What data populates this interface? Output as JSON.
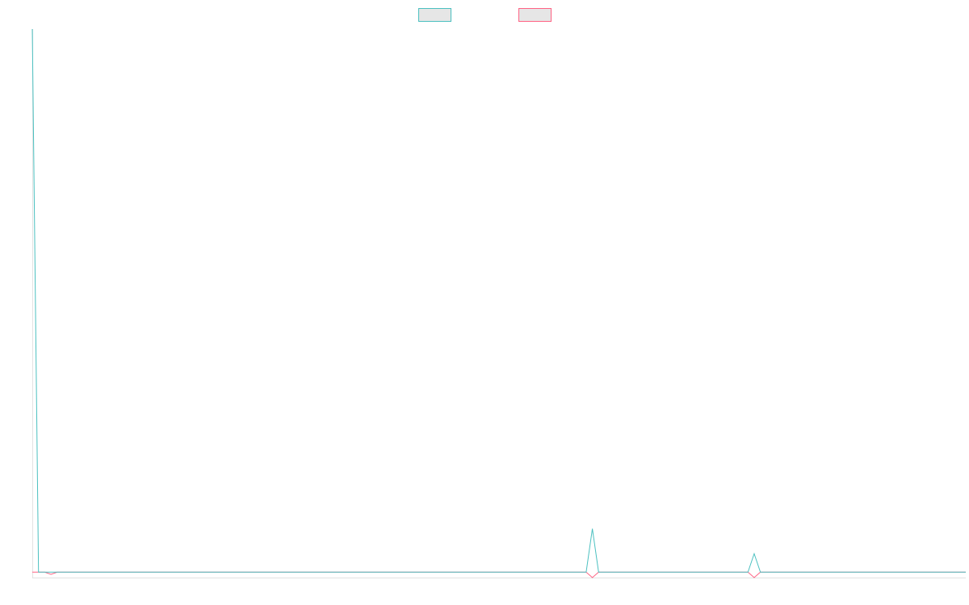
{
  "chart_data": {
    "type": "line",
    "title": "",
    "xlabel": "",
    "ylabel": "",
    "grid": false,
    "legend_position": "top-center",
    "x": [
      0,
      1,
      2,
      3,
      4,
      5,
      6,
      7,
      8,
      9,
      10,
      11,
      12,
      13,
      14,
      15,
      16,
      17,
      18,
      19,
      20,
      21,
      22,
      23,
      24,
      25,
      26,
      27,
      28,
      29,
      30,
      31,
      32,
      33,
      34,
      35,
      36,
      37,
      38,
      39,
      40,
      41,
      42,
      43,
      44,
      45,
      46,
      47,
      48,
      49,
      50,
      51,
      52,
      53,
      54,
      55,
      56,
      57,
      58,
      59,
      60,
      61,
      62,
      63,
      64,
      65,
      66,
      67,
      68,
      69,
      70,
      71,
      72,
      73,
      74,
      75,
      76,
      77,
      78,
      79,
      80,
      81,
      82,
      83,
      84,
      85,
      86,
      87,
      88,
      89,
      90,
      91,
      92,
      93,
      94,
      95,
      96,
      97,
      98,
      99,
      100,
      101,
      102,
      103,
      104,
      105,
      106,
      107,
      108,
      109,
      110,
      111,
      112,
      113,
      114,
      115,
      116,
      117,
      118,
      119,
      120,
      121,
      122,
      123,
      124,
      125,
      126,
      127,
      128,
      129,
      130,
      131,
      132,
      133,
      134,
      135,
      136,
      137,
      138,
      139,
      140,
      141,
      142,
      143,
      144,
      145,
      146,
      147,
      148,
      149,
      150
    ],
    "ylim": [
      -1,
      100
    ],
    "series": [
      {
        "color": "#4bc0c0",
        "values": [
          100,
          0,
          0,
          0,
          0,
          0,
          0,
          0,
          0,
          0,
          0,
          0,
          0,
          0,
          0,
          0,
          0,
          0,
          0,
          0,
          0,
          0,
          0,
          0,
          0,
          0,
          0,
          0,
          0,
          0,
          0,
          0,
          0,
          0,
          0,
          0,
          0,
          0,
          0,
          0,
          0,
          0,
          0,
          0,
          0,
          0,
          0,
          0,
          0,
          0,
          0,
          0,
          0,
          0,
          0,
          0,
          0,
          0,
          0,
          0,
          0,
          0,
          0,
          0,
          0,
          0,
          0,
          0,
          0,
          0,
          0,
          0,
          0,
          0,
          0,
          0,
          0,
          0,
          0,
          0,
          0,
          0,
          0,
          0,
          0,
          0,
          0,
          0,
          0,
          0,
          8,
          0,
          0,
          0,
          0,
          0,
          0,
          0,
          0,
          0,
          0,
          0,
          0,
          0,
          0,
          0,
          0,
          0,
          0,
          0,
          0,
          0,
          0,
          0,
          0,
          0,
          3.4,
          0,
          0,
          0,
          0,
          0,
          0,
          0,
          0,
          0,
          0,
          0,
          0,
          0,
          0,
          0,
          0,
          0,
          0,
          0,
          0,
          0,
          0,
          0,
          0,
          0,
          0,
          0,
          0,
          0,
          0,
          0,
          0,
          0,
          0
        ]
      },
      {
        "color": "#ff6384",
        "values": [
          0,
          0,
          0,
          -0.4,
          0,
          0,
          0,
          0,
          0,
          0,
          0,
          0,
          0,
          0,
          0,
          0,
          0,
          0,
          0,
          0,
          0,
          0,
          0,
          0,
          0,
          0,
          0,
          0,
          0,
          0,
          0,
          0,
          0,
          0,
          0,
          0,
          0,
          0,
          0,
          0,
          0,
          0,
          0,
          0,
          0,
          0,
          0,
          0,
          0,
          0,
          0,
          0,
          0,
          0,
          0,
          0,
          0,
          0,
          0,
          0,
          0,
          0,
          0,
          0,
          0,
          0,
          0,
          0,
          0,
          0,
          0,
          0,
          0,
          0,
          0,
          0,
          0,
          0,
          0,
          0,
          0,
          0,
          0,
          0,
          0,
          0,
          0,
          0,
          0,
          0,
          -1,
          0,
          0,
          0,
          0,
          0,
          0,
          0,
          0,
          0,
          0,
          0,
          0,
          0,
          0,
          0,
          0,
          0,
          0,
          0,
          0,
          0,
          0,
          0,
          0,
          0,
          -1,
          0,
          0,
          0,
          0,
          0,
          0,
          0,
          0,
          0,
          0,
          0,
          0,
          0,
          0,
          0,
          0,
          0,
          0,
          0,
          0,
          0,
          0,
          0,
          0,
          0,
          0,
          0,
          0,
          0,
          0,
          0,
          0,
          0,
          0
        ]
      }
    ]
  }
}
